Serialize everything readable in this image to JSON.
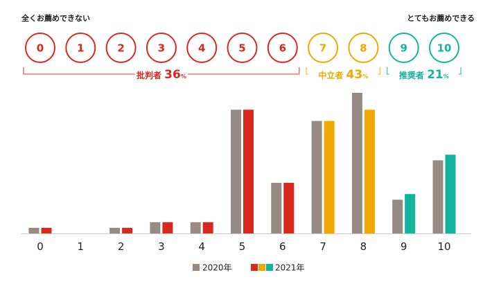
{
  "scale_labels": {
    "left": "全くお薦めできない",
    "right": "とてもお薦めできる"
  },
  "colors": {
    "detractor": "#d9281f",
    "passive": "#f0a800",
    "promoter": "#13b39c",
    "previous_year": "#958b84",
    "axis": "#cccccc"
  },
  "groups": [
    {
      "key": "detractor",
      "label": "批判者",
      "value": "36",
      "unit": "%",
      "from": 0,
      "to": 6
    },
    {
      "key": "passive",
      "label": "中立者",
      "value": "43",
      "unit": "%",
      "from": 7,
      "to": 8
    },
    {
      "key": "promoter",
      "label": "推奨者",
      "value": "21",
      "unit": "%",
      "from": 9,
      "to": 10
    }
  ],
  "chart_data": {
    "type": "bar",
    "categories": [
      "0",
      "1",
      "2",
      "3",
      "4",
      "5",
      "6",
      "7",
      "8",
      "9",
      "10"
    ],
    "series": [
      {
        "name": "2020年",
        "values": [
          0.5,
          0,
          0.5,
          1,
          1,
          11,
          4.5,
          10,
          12.5,
          3,
          6.5
        ]
      },
      {
        "name": "2021年",
        "values": [
          0.5,
          0,
          0.5,
          1,
          1,
          11,
          4.5,
          10,
          11,
          3.5,
          7
        ]
      }
    ],
    "title": "",
    "xlabel": "",
    "ylabel": "",
    "ylim": [
      0,
      12.5
    ],
    "grid": false,
    "legend": "bottom-center"
  }
}
